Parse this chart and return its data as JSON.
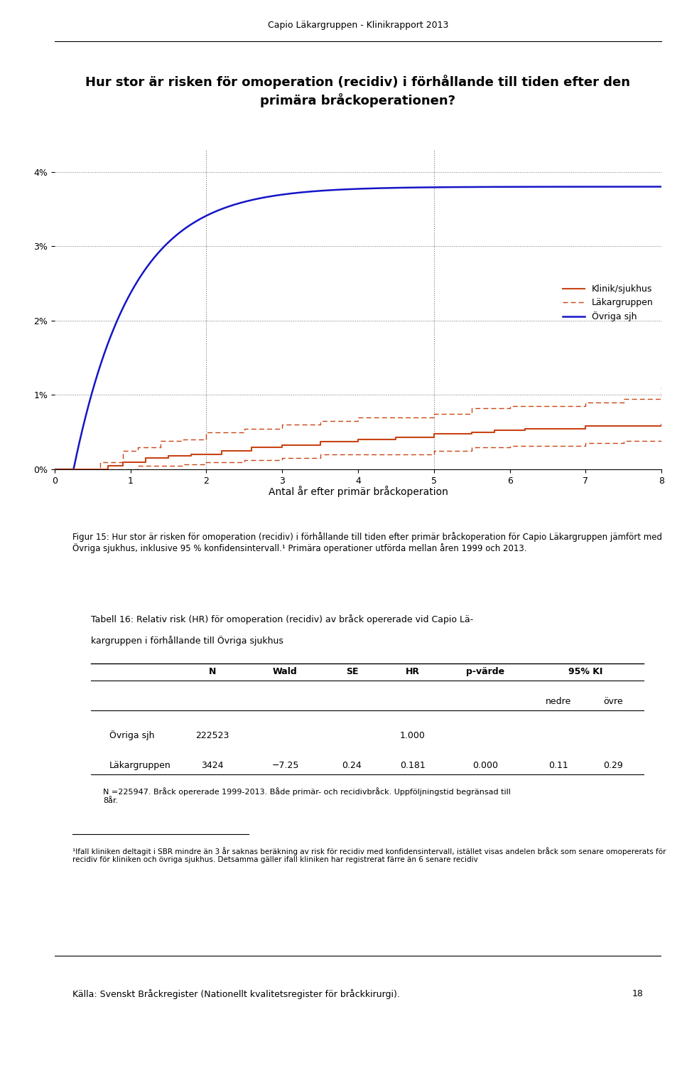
{
  "header": "Capio Läkargruppen - Klinikrapport 2013",
  "title_line1": "Hur stor är risken för omoperation (recidiv) i förhållande till tiden efter den",
  "title_line2": "primära bråckoperationen?",
  "xlabel": "Antal år efter primär bråckoperation",
  "yticks": [
    0.0,
    0.01,
    0.02,
    0.03,
    0.04
  ],
  "ytick_labels": [
    "0%",
    "1%",
    "2%",
    "3%",
    "4%"
  ],
  "xlim": [
    0,
    8
  ],
  "ylim": [
    0,
    0.043
  ],
  "color_blue": "#1515c8",
  "color_orange": "#c84415",
  "caption": "Figur 15: Hur stor är risken för omoperation (recidiv) i förhållande till tiden efter primär bråckoperation för Capio Läkargruppen jämfört med Övriga sjukhus, inklusive 95 % konfidensintervall.¹ Primära operationer utförda mellan åren 1999 och 2013.",
  "table_title_line1": "Tabell 16: Relativ risk (HR) för omoperation (recidiv) av bråck opererade vid Capio Lä-",
  "table_title_line2": "kargruppen i förhållande till Övriga sjukhus",
  "table_note": "N =225947. Bråck opererade 1999-2013. Både primär- och recidivbråck. Uppföljningstid begränsad till\n8år.",
  "footnote": "¹Ifall kliniken deltagit i SBR mindre än 3 år saknas beräkning av risk för recidiv med konfidensintervall, istället visas andelen bråck som senare omopererats för recidiv för kliniken och övriga sjukhus. Detsamma gäller ifall kliniken har registrerat färre än 6 senare recidiv",
  "source": "Källa: Svenskt Bråckregister (Nationellt kvalitetsregister för bråckkirurgi).",
  "page_num": "18"
}
